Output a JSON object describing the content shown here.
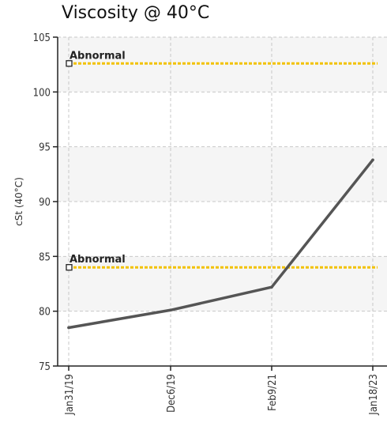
{
  "chart_data": {
    "type": "line",
    "title": "Viscosity @ 40°C",
    "ylabel": "cSt (40°C)",
    "xlabel": "",
    "categories": [
      "Jan31/19",
      "Dec6/19",
      "Feb9/21",
      "Jan18/23"
    ],
    "ylim": [
      75,
      105
    ],
    "yticks": [
      75,
      80,
      85,
      90,
      95,
      100,
      105
    ],
    "grid": true,
    "series": [
      {
        "values": [
          78.5,
          80.1,
          82.2,
          93.8
        ]
      }
    ],
    "thresholds": [
      {
        "label": "Abnormal",
        "value": 102.6
      },
      {
        "label": "Abnormal",
        "value": 84.0
      }
    ],
    "colors": {
      "line": "#555555",
      "threshold": "#f2c200",
      "band": "#f5f5f5",
      "grid": "#c8c8c8"
    }
  }
}
